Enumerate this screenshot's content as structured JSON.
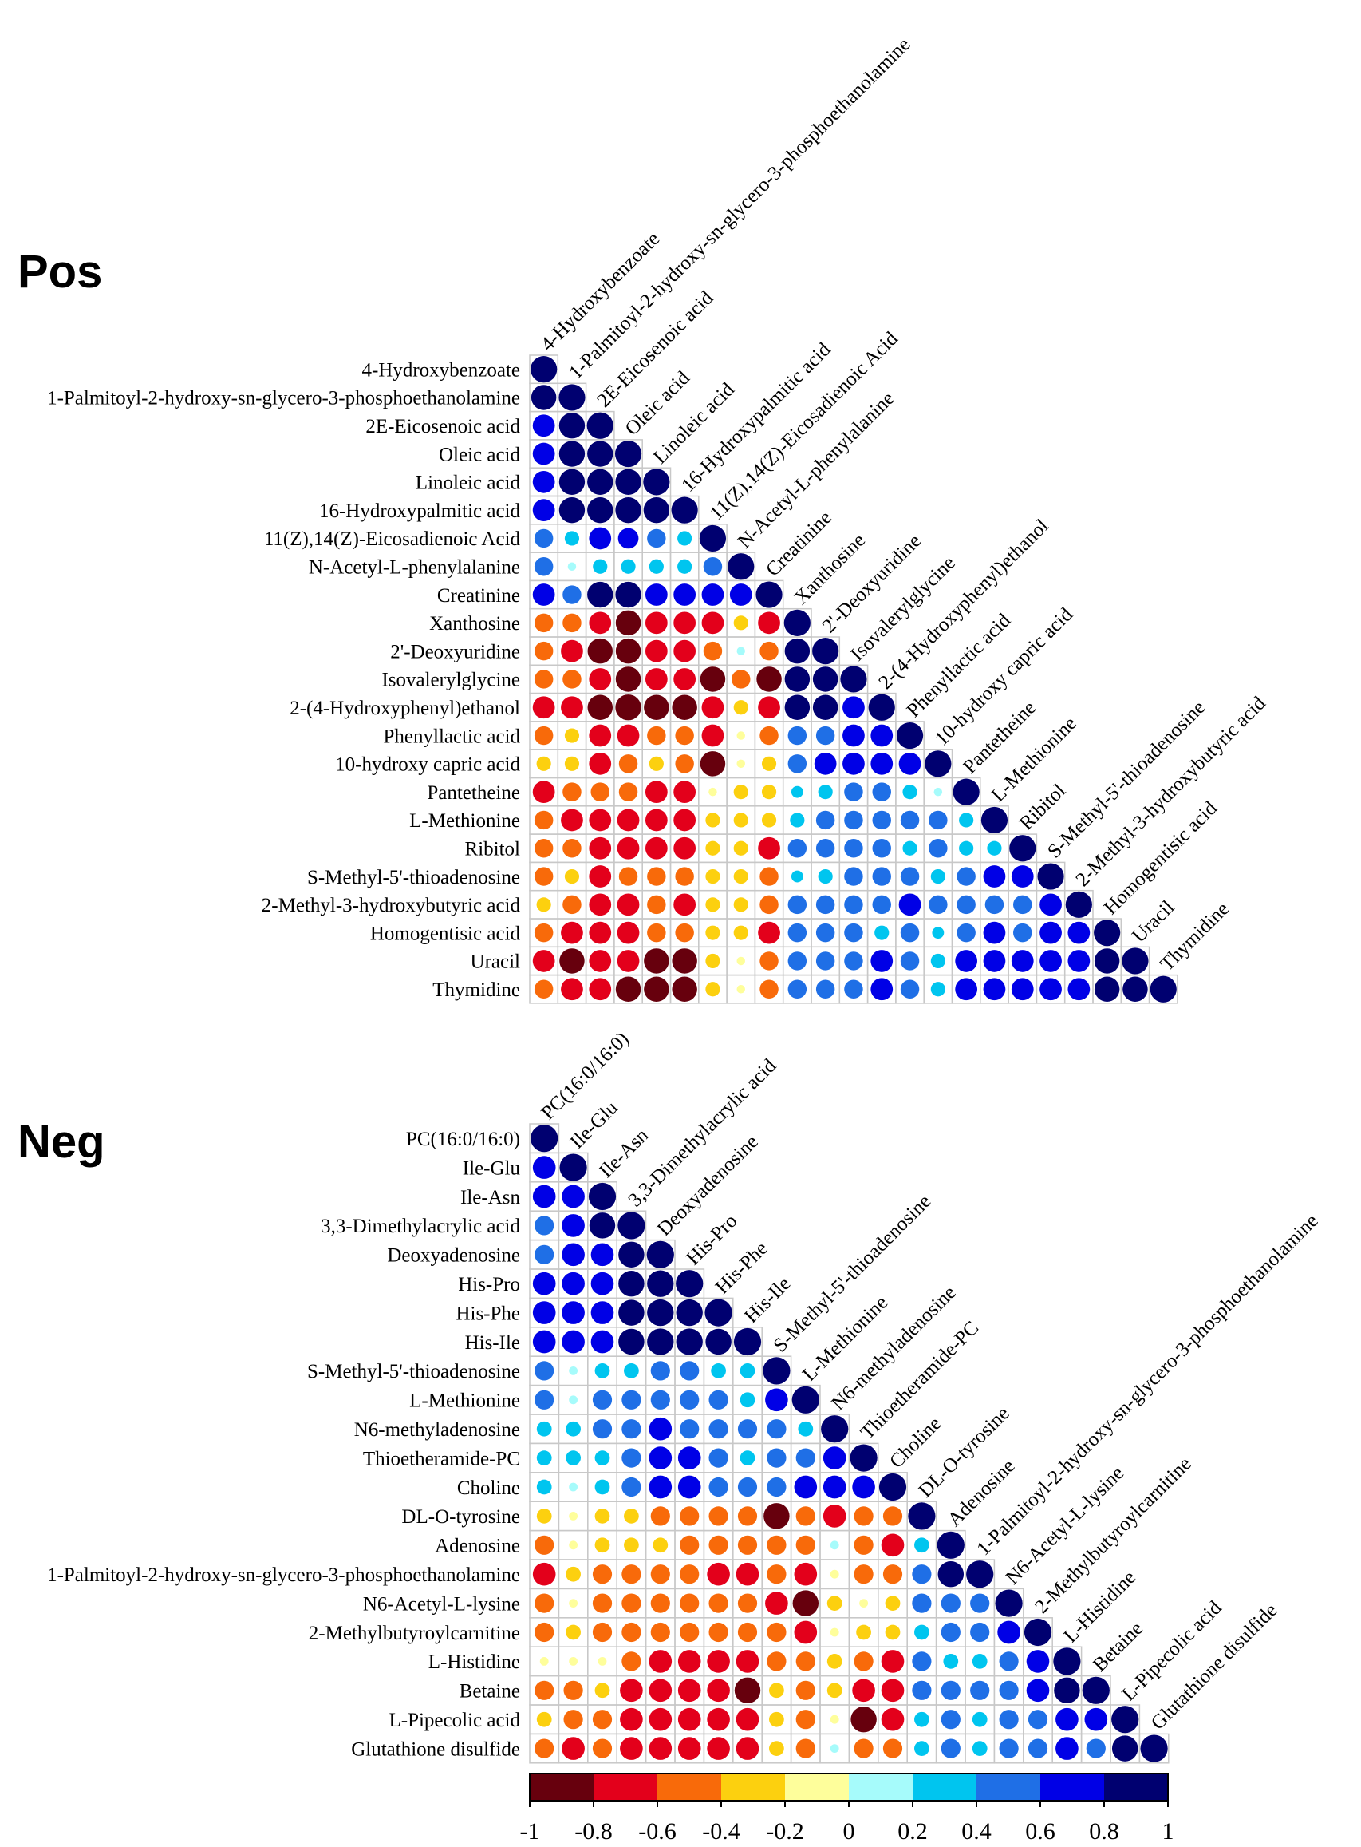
{
  "chart_data": [
    {
      "type": "heatmap",
      "style": "lower-triangle correlation dot matrix",
      "title": "Pos",
      "labels": [
        "4-Hydroxybenzoate",
        "1-Palmitoyl-2-hydroxy-sn-glycero-3-phosphoethanolamine",
        "2E-Eicosenoic acid",
        "Oleic acid",
        "Linoleic acid",
        "16-Hydroxypalmitic acid",
        "11(Z),14(Z)-Eicosadienoic Acid",
        "N-Acetyl-L-phenylalanine",
        "Creatinine",
        "Xanthosine",
        "2'-Deoxyuridine",
        "Isovalerylglycine",
        "2-(4-Hydroxyphenyl)ethanol",
        "Phenyllactic acid",
        "10-hydroxy capric acid",
        "Pantetheine",
        "L-Methionine",
        "Ribitol",
        "S-Methyl-5'-thioadenosine",
        "2-Methyl-3-hydroxybutyric acid",
        "Homogentisic acid",
        "Uracil",
        "Thymidine"
      ],
      "values": [
        [
          1
        ],
        [
          0.9,
          1
        ],
        [
          0.7,
          0.95,
          1
        ],
        [
          0.7,
          0.95,
          0.95,
          1
        ],
        [
          0.7,
          0.95,
          0.95,
          0.95,
          1
        ],
        [
          0.7,
          0.95,
          0.95,
          0.95,
          0.95,
          1
        ],
        [
          0.5,
          0.3,
          0.7,
          0.6,
          0.5,
          0.3,
          1
        ],
        [
          0.5,
          0.1,
          0.3,
          0.3,
          0.3,
          0.3,
          0.5,
          1
        ],
        [
          0.7,
          0.5,
          0.95,
          0.95,
          0.7,
          0.7,
          0.7,
          0.7,
          1
        ],
        [
          -0.5,
          -0.5,
          -0.7,
          -0.9,
          -0.7,
          -0.7,
          -0.7,
          -0.3,
          -0.7,
          1
        ],
        [
          -0.5,
          -0.7,
          -0.9,
          -0.9,
          -0.7,
          -0.7,
          -0.5,
          0.1,
          -0.5,
          0.9,
          1
        ],
        [
          -0.5,
          -0.5,
          -0.7,
          -0.9,
          -0.7,
          -0.7,
          -0.9,
          -0.5,
          -0.9,
          0.9,
          0.9,
          1
        ],
        [
          -0.7,
          -0.7,
          -0.9,
          -0.95,
          -0.9,
          -0.9,
          -0.7,
          -0.3,
          -0.7,
          0.9,
          0.9,
          0.7,
          1
        ],
        [
          -0.5,
          -0.3,
          -0.7,
          -0.7,
          -0.5,
          -0.5,
          -0.7,
          -0.1,
          -0.5,
          0.5,
          0.5,
          0.7,
          0.7,
          1
        ],
        [
          -0.3,
          -0.3,
          -0.7,
          -0.5,
          -0.3,
          -0.5,
          -0.9,
          -0.1,
          -0.3,
          0.5,
          0.7,
          0.7,
          0.7,
          0.7,
          1
        ],
        [
          -0.7,
          -0.5,
          -0.5,
          -0.5,
          -0.7,
          -0.7,
          -0.1,
          -0.3,
          -0.3,
          0.2,
          0.3,
          0.5,
          0.5,
          0.3,
          0.1,
          1
        ],
        [
          -0.5,
          -0.7,
          -0.7,
          -0.7,
          -0.7,
          -0.7,
          -0.3,
          -0.3,
          -0.3,
          0.3,
          0.5,
          0.5,
          0.5,
          0.5,
          0.5,
          0.3,
          1
        ],
        [
          -0.5,
          -0.5,
          -0.7,
          -0.7,
          -0.7,
          -0.7,
          -0.3,
          -0.3,
          -0.7,
          0.5,
          0.5,
          0.5,
          0.5,
          0.3,
          0.5,
          0.3,
          0.3,
          1
        ],
        [
          -0.5,
          -0.3,
          -0.7,
          -0.5,
          -0.5,
          -0.5,
          -0.3,
          -0.3,
          -0.5,
          0.2,
          0.3,
          0.5,
          0.5,
          0.5,
          0.3,
          0.5,
          0.7,
          0.7,
          1
        ],
        [
          -0.3,
          -0.5,
          -0.7,
          -0.7,
          -0.5,
          -0.7,
          -0.3,
          -0.3,
          -0.5,
          0.5,
          0.5,
          0.5,
          0.5,
          0.7,
          0.5,
          0.5,
          0.5,
          0.5,
          0.7,
          1
        ],
        [
          -0.5,
          -0.7,
          -0.7,
          -0.7,
          -0.5,
          -0.5,
          -0.3,
          -0.3,
          -0.7,
          0.5,
          0.5,
          0.5,
          0.3,
          0.5,
          0.2,
          0.5,
          0.7,
          0.5,
          0.7,
          0.7,
          1
        ],
        [
          -0.7,
          -0.9,
          -0.7,
          -0.7,
          -0.9,
          -0.9,
          -0.3,
          -0.1,
          -0.5,
          0.5,
          0.5,
          0.5,
          0.7,
          0.5,
          0.3,
          0.7,
          0.7,
          0.7,
          0.7,
          0.7,
          0.9,
          1
        ],
        [
          -0.5,
          -0.7,
          -0.7,
          -0.9,
          -0.9,
          -0.9,
          -0.3,
          -0.1,
          -0.5,
          0.5,
          0.5,
          0.5,
          0.7,
          0.5,
          0.3,
          0.7,
          0.7,
          0.7,
          0.7,
          0.7,
          0.9,
          0.9,
          1
        ]
      ]
    },
    {
      "type": "heatmap",
      "style": "lower-triangle correlation dot matrix",
      "title": "Neg",
      "labels": [
        "PC(16:0/16:0)",
        "Ile-Glu",
        "Ile-Asn",
        "3,3-Dimethylacrylic acid",
        "Deoxyadenosine",
        "His-Pro",
        "His-Phe",
        "His-Ile",
        "S-Methyl-5'-thioadenosine",
        "L-Methionine",
        "N6-methyladenosine",
        "Thioetheramide-PC",
        "Choline",
        "DL-O-tyrosine",
        "Adenosine",
        "1-Palmitoyl-2-hydroxy-sn-glycero-3-phosphoethanolamine",
        "N6-Acetyl-L-lysine",
        "2-Methylbutyroylcarnitine",
        "L-Histidine",
        "Betaine",
        "L-Pipecolic acid",
        "Glutathione disulfide"
      ],
      "values": [
        [
          1
        ],
        [
          0.7,
          1
        ],
        [
          0.7,
          0.7,
          1
        ],
        [
          0.5,
          0.7,
          0.9,
          1
        ],
        [
          0.5,
          0.7,
          0.7,
          0.9,
          1
        ],
        [
          0.7,
          0.7,
          0.7,
          0.9,
          0.95,
          1
        ],
        [
          0.7,
          0.7,
          0.7,
          0.9,
          0.95,
          0.95,
          1
        ],
        [
          0.7,
          0.7,
          0.7,
          0.9,
          0.95,
          0.95,
          0.9,
          1
        ],
        [
          0.5,
          0.1,
          0.3,
          0.3,
          0.5,
          0.5,
          0.3,
          0.3,
          1
        ],
        [
          0.5,
          0.1,
          0.5,
          0.5,
          0.5,
          0.5,
          0.5,
          0.3,
          0.7,
          1
        ],
        [
          0.3,
          0.3,
          0.5,
          0.5,
          0.7,
          0.5,
          0.5,
          0.5,
          0.5,
          0.3,
          1
        ],
        [
          0.3,
          0.3,
          0.3,
          0.5,
          0.7,
          0.7,
          0.5,
          0.3,
          0.5,
          0.5,
          0.7,
          1
        ],
        [
          0.3,
          0.1,
          0.3,
          0.5,
          0.7,
          0.7,
          0.5,
          0.5,
          0.5,
          0.7,
          0.7,
          0.7,
          1
        ],
        [
          -0.3,
          -0.1,
          -0.3,
          -0.3,
          -0.5,
          -0.5,
          -0.5,
          -0.5,
          -0.9,
          -0.5,
          -0.7,
          -0.5,
          -0.5,
          1
        ],
        [
          -0.5,
          -0.1,
          -0.3,
          -0.3,
          -0.3,
          -0.5,
          -0.5,
          -0.5,
          -0.5,
          -0.5,
          0.1,
          -0.5,
          -0.7,
          0.3,
          1
        ],
        [
          -0.7,
          -0.3,
          -0.5,
          -0.5,
          -0.5,
          -0.5,
          -0.7,
          -0.7,
          -0.5,
          -0.7,
          -0.1,
          -0.5,
          -0.5,
          0.5,
          0.9,
          1
        ],
        [
          -0.5,
          -0.1,
          -0.5,
          -0.5,
          -0.5,
          -0.5,
          -0.5,
          -0.5,
          -0.7,
          -0.9,
          -0.3,
          -0.1,
          -0.3,
          0.5,
          0.5,
          0.5,
          1
        ],
        [
          -0.5,
          -0.3,
          -0.5,
          -0.5,
          -0.5,
          -0.5,
          -0.5,
          -0.5,
          -0.5,
          -0.7,
          -0.1,
          -0.3,
          -0.3,
          0.3,
          0.5,
          0.5,
          0.7,
          1
        ],
        [
          -0.1,
          -0.1,
          -0.1,
          -0.5,
          -0.7,
          -0.7,
          -0.7,
          -0.7,
          -0.5,
          -0.5,
          -0.3,
          -0.5,
          -0.7,
          0.5,
          0.3,
          0.3,
          0.5,
          0.7,
          1
        ],
        [
          -0.5,
          -0.5,
          -0.3,
          -0.7,
          -0.7,
          -0.7,
          -0.7,
          -0.9,
          -0.3,
          -0.5,
          -0.3,
          -0.7,
          -0.7,
          0.5,
          0.5,
          0.5,
          0.5,
          0.7,
          0.9,
          1
        ],
        [
          -0.3,
          -0.5,
          -0.5,
          -0.7,
          -0.7,
          -0.7,
          -0.7,
          -0.7,
          -0.3,
          -0.5,
          -0.1,
          -0.9,
          -0.7,
          0.3,
          0.5,
          0.3,
          0.5,
          0.5,
          0.7,
          0.7,
          1
        ],
        [
          -0.5,
          -0.7,
          -0.5,
          -0.7,
          -0.7,
          -0.7,
          -0.7,
          -0.7,
          -0.3,
          -0.5,
          0.1,
          -0.5,
          -0.5,
          0.3,
          0.5,
          0.3,
          0.5,
          0.5,
          0.7,
          0.5,
          0.9,
          1
        ]
      ]
    }
  ],
  "colorbar": {
    "range": [
      -1,
      1
    ],
    "ticks": [
      "-1",
      "-0.8",
      "-0.6",
      "-0.4",
      "-0.2",
      "0",
      "0.2",
      "0.4",
      "0.6",
      "0.8",
      "1"
    ],
    "colors": [
      "#67000d",
      "#e3001b",
      "#f86a0a",
      "#fcd00f",
      "#fefe9b",
      "#a6fbfb",
      "#00c5ef",
      "#1f6fe6",
      "#0000e6",
      "#000070"
    ]
  }
}
